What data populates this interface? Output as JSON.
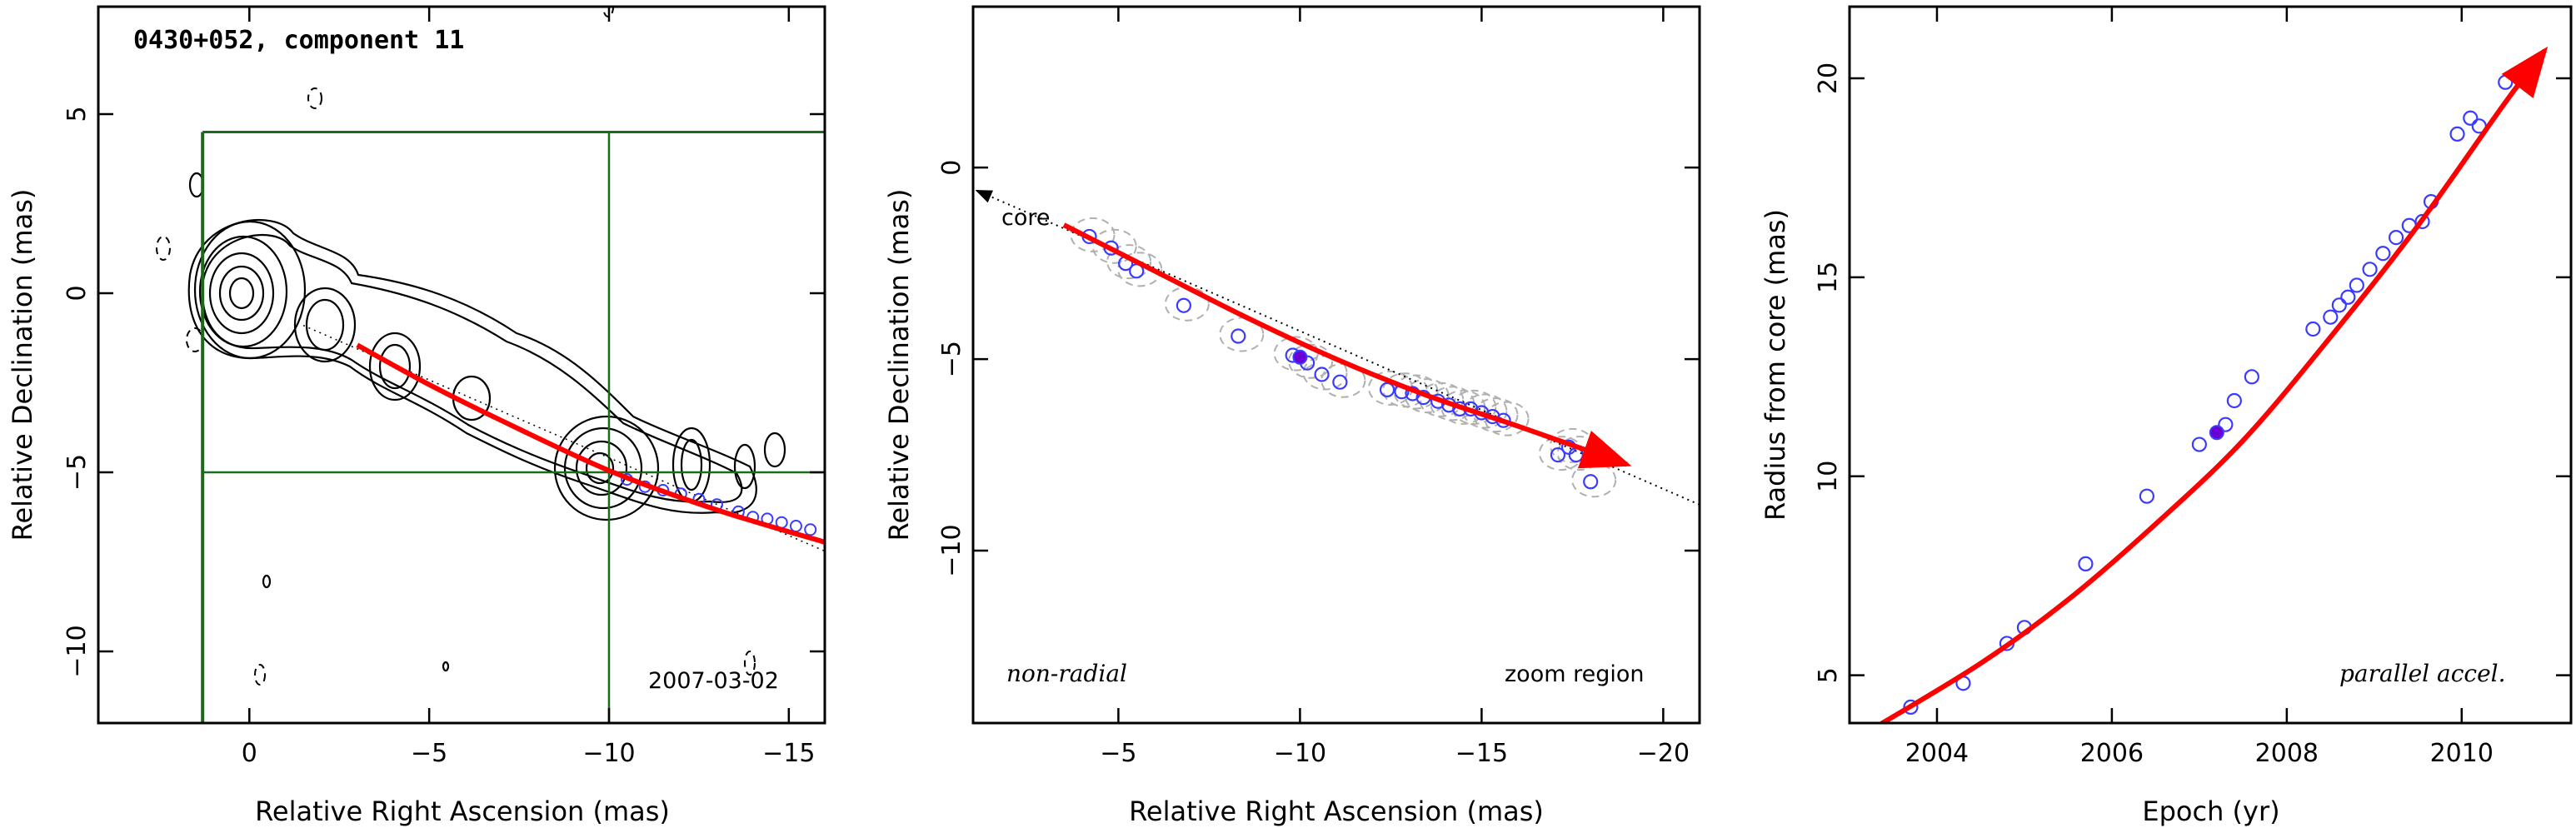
{
  "chart_data": [
    {
      "type": "contour",
      "title": "0430+052, component 11",
      "date_label": "2007-03-02",
      "xlabel": "Relative Right Ascension (mas)",
      "ylabel": "Relative Declination (mas)",
      "xlim": [
        4.2,
        -16
      ],
      "ylim": [
        -12,
        8
      ],
      "xticks": [
        0,
        -5,
        -10,
        -15
      ],
      "yticks": [
        -10,
        -5,
        0,
        5
      ],
      "colors": {
        "fit": "#ff0000",
        "points": "#3b3bff",
        "box": "#1a6b1a"
      },
      "zoom_box": {
        "x": [
          1.3,
          -16
        ],
        "y": [
          -12,
          4.5
        ]
      },
      "crosshair": {
        "x": -10,
        "y": -5
      },
      "fit_path": {
        "x": [
          -3,
          -5,
          -7,
          -10,
          -13,
          -16
        ],
        "y": [
          -1.45,
          -2.55,
          -3.55,
          -4.95,
          -6.05,
          -6.95
        ]
      },
      "points": {
        "x": [
          -10.5,
          -11.0,
          -11.5,
          -12.0,
          -12.5,
          -13.0,
          -13.6,
          -14.0,
          -14.4,
          -14.8,
          -15.2,
          -15.6
        ],
        "y": [
          -5.2,
          -5.4,
          -5.5,
          -5.6,
          -5.75,
          -5.9,
          -6.1,
          -6.25,
          -6.3,
          -6.4,
          -6.5,
          -6.6
        ]
      }
    },
    {
      "type": "scatter",
      "xlabel": "Relative Right Ascension (mas)",
      "ylabel": "Relative Declination (mas)",
      "xlim": [
        -1,
        -21
      ],
      "ylim": [
        -14.5,
        4.2
      ],
      "xticks": [
        -5,
        -10,
        -15,
        -20
      ],
      "yticks": [
        -10,
        -5,
        0
      ],
      "annotations": {
        "left": "non-radial",
        "right": "zoom region",
        "core": "core"
      },
      "fit_path": {
        "x": [
          -3.5,
          -6,
          -8.5,
          -11,
          -13.5,
          -16,
          -19
        ],
        "y": [
          -1.5,
          -2.7,
          -3.9,
          -5.0,
          -5.95,
          -6.75,
          -7.75
        ]
      },
      "radial_line": {
        "x": [
          -1.1,
          -21
        ],
        "y": [
          -0.6,
          -8.8
        ]
      },
      "points": {
        "x": [
          -4.2,
          -4.8,
          -5.2,
          -5.5,
          -6.8,
          -8.3,
          -9.8,
          -10.2,
          -10.6,
          -11.1,
          -12.4,
          -12.8,
          -13.1,
          -13.4,
          -13.8,
          -14.1,
          -14.4,
          -14.7,
          -15.0,
          -15.3,
          -15.6,
          -17.1,
          -17.4,
          -17.6,
          -18.0
        ],
        "y": [
          -1.8,
          -2.1,
          -2.5,
          -2.7,
          -3.6,
          -4.4,
          -4.9,
          -5.1,
          -5.4,
          -5.6,
          -5.8,
          -5.85,
          -5.9,
          -6.0,
          -6.1,
          -6.2,
          -6.3,
          -6.3,
          -6.4,
          -6.5,
          -6.6,
          -7.5,
          -7.3,
          -7.5,
          -8.2
        ]
      },
      "highlight": {
        "x": -10.0,
        "y": -4.95
      },
      "colors": {
        "fit": "#ff0000",
        "points": "#3b3bff",
        "highlight": "#6b00d6",
        "circles": "#b0b0b0"
      }
    },
    {
      "type": "scatter",
      "xlabel": "Epoch (yr)",
      "ylabel": "Radius from core (mas)",
      "xlim": [
        2003,
        2011.25
      ],
      "ylim": [
        3.8,
        21.8
      ],
      "xticks": [
        2004,
        2006,
        2008,
        2010
      ],
      "yticks": [
        5,
        10,
        15,
        20
      ],
      "annotation": "parallel accel.",
      "fit_path": {
        "x": [
          2003.3,
          2004.5,
          2005.5,
          2006.5,
          2007.5,
          2008.5,
          2009.5,
          2010.5,
          2010.95
        ],
        "y": [
          3.7,
          5.3,
          6.9,
          8.8,
          10.9,
          13.5,
          16.3,
          19.4,
          20.7
        ]
      },
      "points": {
        "x": [
          2003.7,
          2004.3,
          2004.8,
          2005.0,
          2005.7,
          2006.4,
          2007.0,
          2007.3,
          2007.4,
          2007.6,
          2008.3,
          2008.5,
          2008.6,
          2008.7,
          2008.8,
          2008.95,
          2009.1,
          2009.25,
          2009.4,
          2009.55,
          2009.65,
          2009.95,
          2010.1,
          2010.2,
          2010.5
        ],
        "y": [
          4.2,
          4.8,
          5.8,
          6.2,
          7.8,
          9.5,
          10.8,
          11.3,
          11.9,
          12.5,
          13.7,
          14.0,
          14.3,
          14.5,
          14.8,
          15.2,
          15.6,
          16.0,
          16.3,
          16.4,
          16.9,
          18.6,
          19.0,
          18.8,
          19.9
        ]
      },
      "highlight": {
        "x": 2007.2,
        "y": 11.1
      },
      "colors": {
        "fit": "#ff0000",
        "points": "#3b3bff",
        "highlight": "#6b00d6"
      }
    }
  ]
}
